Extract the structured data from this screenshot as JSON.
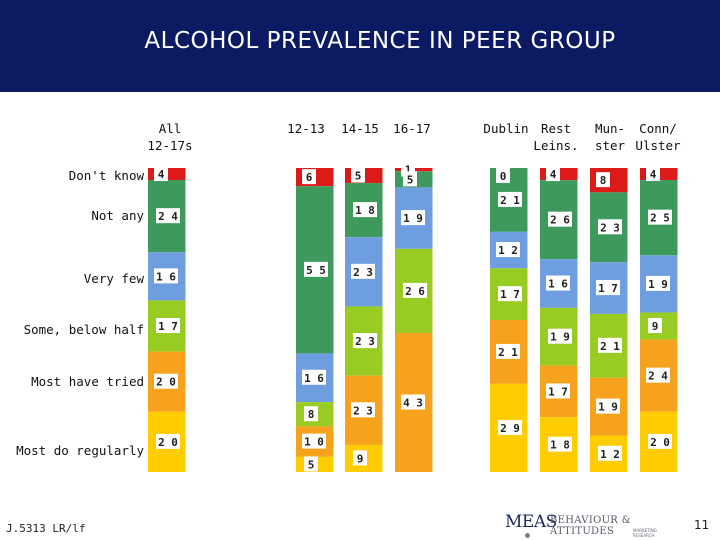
{
  "title": "ALCOHOL PREVALENCE IN PEER GROUP",
  "footer": {
    "code": "J.5313 LR/lf",
    "page": "11"
  },
  "logo": {
    "name": "MEAS",
    "tagline": "BEHAVIOUR & ATTITUDES",
    "subline": "MARKETING RESEARCH"
  },
  "colors": {
    "header_bg": "#0b1a63",
    "dont_know": "#dd1a1a",
    "not_any": "#3e9a5c",
    "very_few": "#6f9ee0",
    "some_below_half": "#99cc22",
    "most_have_tried": "#f7a21c",
    "most_do_regularly": "#ffcc00"
  },
  "chart_data": {
    "type": "bar",
    "stacked": true,
    "percent_scale": true,
    "categories": [
      "All\n12-17s",
      "12-13",
      "14-15",
      "16-17",
      "Dublin",
      "Rest\nLeins.",
      "Mun-\nster",
      "Conn/\nUlster"
    ],
    "series": [
      {
        "name": "Don't know",
        "key": "dont_know",
        "values": [
          4,
          6,
          5,
          1,
          0,
          4,
          8,
          4
        ]
      },
      {
        "name": "Not any",
        "key": "not_any",
        "values": [
          24,
          55,
          18,
          5,
          21,
          26,
          23,
          25
        ]
      },
      {
        "name": "Very few",
        "key": "very_few",
        "values": [
          16,
          16,
          23,
          19,
          12,
          16,
          17,
          19
        ]
      },
      {
        "name": "Some, below half",
        "key": "some_below_half",
        "values": [
          17,
          8,
          23,
          26,
          17,
          19,
          21,
          9
        ]
      },
      {
        "name": "Most have tried",
        "key": "most_have_tried",
        "values": [
          20,
          10,
          23,
          43,
          21,
          17,
          19,
          24
        ]
      },
      {
        "name": "Most do regularly",
        "key": "most_do_regularly",
        "values": [
          20,
          5,
          9,
          0,
          29,
          18,
          12,
          20
        ]
      }
    ]
  }
}
